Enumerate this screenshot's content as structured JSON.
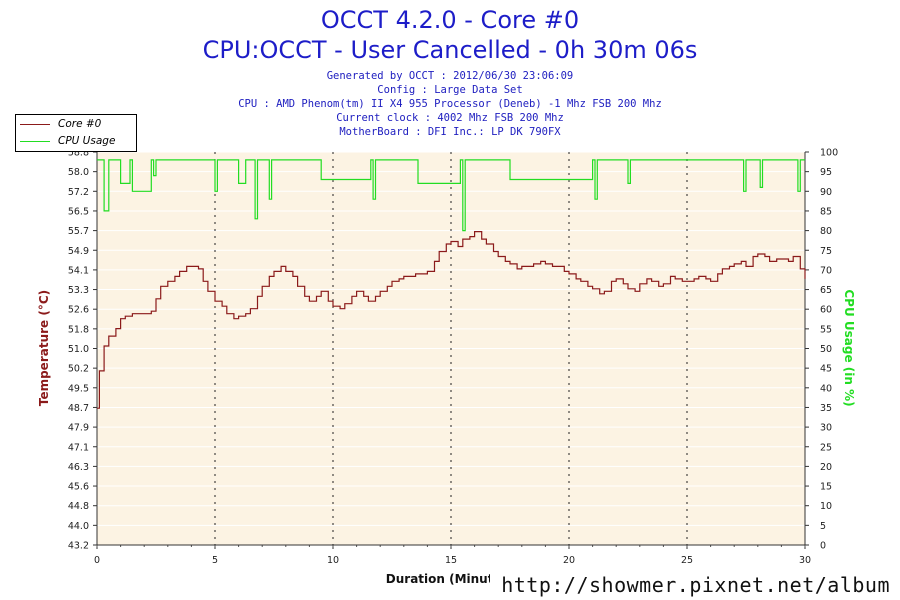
{
  "header": {
    "title": "OCCT 4.2.0 - Core #0",
    "subtitle": "CPU:OCCT - User Cancelled - 0h 30m 06s",
    "info_lines": [
      "Generated by OCCT : 2012/06/30 23:06:09",
      "Config : Large Data Set",
      "CPU : AMD Phenom(tm) II X4 955 Processor (Deneb) -1 Mhz FSB 200 Mhz",
      "Current clock : 4002 Mhz FSB 200 Mhz",
      "MotherBoard : DFI Inc.: LP DK 790FX"
    ]
  },
  "legend": {
    "items": [
      {
        "label": "Core #0",
        "color": "#8b1a1a"
      },
      {
        "label": "CPU Usage",
        "color": "#22dd22"
      }
    ]
  },
  "watermark": "http://showmer.pixnet.net/album",
  "chart_data": {
    "type": "line",
    "xlabel": "Duration (Minutes)",
    "ylabel_left": "Temperature (°C)",
    "ylabel_right": "CPU Usage (in %)",
    "xlim": [
      0,
      30
    ],
    "ylim_left": [
      43.2,
      59.0
    ],
    "ylim_right": [
      0,
      100
    ],
    "x_ticks": [
      "0",
      "5",
      "10",
      "15",
      "20",
      "25",
      "30"
    ],
    "y_ticks_left": [
      "43.2",
      "44.0",
      "44.8",
      "45.6",
      "46.3",
      "47.1",
      "47.9",
      "48.7",
      "49.5",
      "50.2",
      "51.0",
      "51.8",
      "52.6",
      "53.3",
      "54.1",
      "54.9",
      "55.7",
      "56.5",
      "57.2",
      "58.0",
      "58.8"
    ],
    "y_ticks_right": [
      "0",
      "5",
      "10",
      "15",
      "20",
      "25",
      "30",
      "35",
      "40",
      "45",
      "50",
      "55",
      "60",
      "65",
      "70",
      "75",
      "80",
      "85",
      "90",
      "95",
      "100"
    ],
    "grid": true,
    "legend_position": "top-left",
    "background": "#fcf3e3",
    "series": [
      {
        "name": "Core #0",
        "axis": "left",
        "color": "#8b1a1a",
        "x": [
          0,
          0.1,
          0.3,
          0.5,
          0.8,
          1.0,
          1.2,
          1.5,
          2.0,
          2.3,
          2.5,
          2.7,
          3.0,
          3.3,
          3.5,
          3.8,
          4.0,
          4.3,
          4.5,
          4.7,
          5.0,
          5.3,
          5.5,
          5.8,
          6.0,
          6.3,
          6.5,
          6.8,
          7.0,
          7.3,
          7.5,
          7.8,
          8.0,
          8.3,
          8.5,
          8.8,
          9.0,
          9.3,
          9.5,
          9.8,
          10.0,
          10.3,
          10.5,
          10.8,
          11.0,
          11.3,
          11.5,
          11.8,
          12.0,
          12.3,
          12.5,
          12.8,
          13.0,
          13.5,
          14.0,
          14.3,
          14.5,
          14.8,
          15.0,
          15.3,
          15.5,
          15.8,
          16.0,
          16.3,
          16.5,
          16.8,
          17.0,
          17.3,
          17.5,
          17.8,
          18.0,
          18.3,
          18.5,
          18.8,
          19.0,
          19.3,
          19.5,
          19.8,
          20.0,
          20.3,
          20.5,
          20.8,
          21.0,
          21.3,
          21.5,
          21.8,
          22.0,
          22.3,
          22.5,
          22.8,
          23.0,
          23.3,
          23.5,
          23.8,
          24.0,
          24.3,
          24.5,
          24.8,
          25.0,
          25.3,
          25.5,
          25.8,
          26.0,
          26.3,
          26.5,
          26.8,
          27.0,
          27.3,
          27.5,
          27.8,
          28.0,
          28.3,
          28.5,
          28.8,
          29.0,
          29.3,
          29.5,
          29.8,
          30.0
        ],
        "y": [
          48.7,
          50.2,
          51.2,
          51.6,
          51.9,
          52.3,
          52.4,
          52.5,
          52.5,
          52.6,
          53.1,
          53.6,
          53.8,
          54.0,
          54.2,
          54.4,
          54.4,
          54.3,
          53.8,
          53.4,
          53.0,
          52.8,
          52.5,
          52.3,
          52.4,
          52.5,
          52.7,
          53.2,
          53.6,
          54.0,
          54.2,
          54.4,
          54.2,
          54.0,
          53.6,
          53.2,
          53.0,
          53.2,
          53.4,
          53.0,
          52.8,
          52.7,
          52.9,
          53.2,
          53.4,
          53.2,
          53.0,
          53.2,
          53.4,
          53.6,
          53.8,
          53.9,
          54.0,
          54.1,
          54.2,
          54.6,
          55.0,
          55.3,
          55.4,
          55.2,
          55.5,
          55.6,
          55.8,
          55.5,
          55.3,
          55.0,
          54.8,
          54.6,
          54.5,
          54.3,
          54.4,
          54.4,
          54.5,
          54.6,
          54.5,
          54.4,
          54.4,
          54.2,
          54.1,
          53.9,
          53.8,
          53.6,
          53.5,
          53.3,
          53.4,
          53.8,
          53.9,
          53.7,
          53.5,
          53.4,
          53.7,
          53.9,
          53.8,
          53.6,
          53.7,
          54.0,
          53.9,
          53.8,
          53.8,
          53.9,
          54.0,
          53.9,
          53.8,
          54.1,
          54.3,
          54.4,
          54.5,
          54.6,
          54.4,
          54.8,
          54.9,
          54.8,
          54.6,
          54.7,
          54.7,
          54.6,
          54.8,
          54.3,
          53.9
        ]
      },
      {
        "name": "CPU Usage",
        "axis": "right",
        "color": "#22dd22",
        "x": [
          0,
          0.2,
          0.3,
          0.5,
          0.9,
          1.0,
          1.4,
          1.5,
          2.3,
          2.4,
          2.5,
          4.9,
          5.0,
          5.1,
          5.9,
          6.0,
          6.3,
          6.6,
          6.7,
          6.8,
          7.2,
          7.3,
          7.4,
          9.4,
          9.5,
          11.6,
          11.7,
          11.8,
          13.5,
          13.6,
          15.4,
          15.5,
          15.6,
          15.7,
          17.4,
          17.5,
          21.0,
          21.1,
          21.2,
          22.4,
          22.5,
          22.6,
          27.3,
          27.4,
          27.5,
          28.0,
          28.1,
          28.2,
          29.6,
          29.7,
          29.8,
          30.0
        ],
        "y": [
          98,
          98,
          85,
          98,
          98,
          92,
          98,
          90,
          98,
          94,
          98,
          98,
          90,
          98,
          98,
          92,
          98,
          98,
          83,
          98,
          98,
          88,
          98,
          98,
          93,
          98,
          88,
          98,
          98,
          92,
          98,
          80,
          98,
          98,
          98,
          93,
          98,
          88,
          98,
          98,
          92,
          98,
          98,
          90,
          98,
          98,
          91,
          98,
          98,
          90,
          98,
          98
        ]
      }
    ]
  }
}
